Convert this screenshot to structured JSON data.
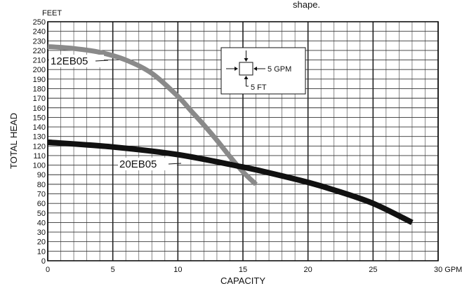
{
  "chart_data": {
    "type": "line",
    "xlabel": "CAPACITY",
    "ylabel": "TOTAL HEAD",
    "x_unit": "GPM",
    "y_unit": "FEET",
    "xlim": [
      0,
      30
    ],
    "ylim": [
      0,
      250
    ],
    "x_ticks": [
      0,
      5,
      10,
      15,
      20,
      25,
      30
    ],
    "x_tick_labels": [
      "0",
      "5",
      "10",
      "15",
      "20",
      "25",
      "30 GPM"
    ],
    "y_major_step": 10,
    "x_major_step": 5,
    "x_minor_step": 1,
    "grid": true,
    "top_text": "shape.",
    "series": [
      {
        "name": "12EB05",
        "color": "#8a8a8a",
        "x": [
          0,
          2,
          4,
          6,
          8,
          10,
          11,
          12,
          13,
          14,
          15,
          16
        ],
        "y": [
          224,
          222,
          218,
          210,
          196,
          172,
          157,
          142,
          126,
          109,
          93,
          80
        ]
      },
      {
        "name": "20EB05",
        "color": "#111111",
        "x": [
          0,
          5,
          10,
          15,
          17,
          20,
          22,
          25,
          28
        ],
        "y": [
          124,
          119,
          111,
          98,
          92,
          82,
          74,
          60,
          40
        ]
      }
    ],
    "legend": {
      "flow_label": "5 GPM",
      "head_label": "5 FT"
    }
  }
}
